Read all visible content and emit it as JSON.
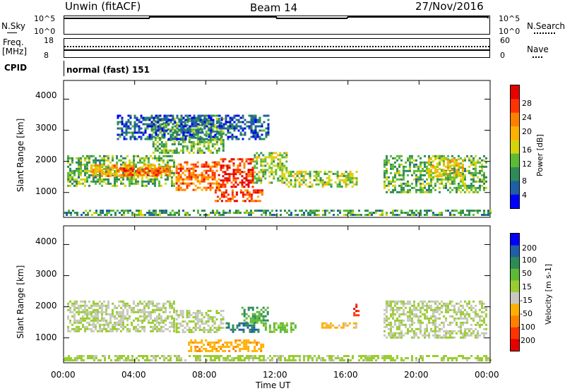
{
  "header": {
    "station": "Unwin (fitACF)",
    "beam": "Beam 14",
    "date": "27/Nov/2016"
  },
  "top_panels": {
    "nsky": {
      "label": "N.Sky",
      "y_top": "10^5",
      "y_bottom": "10^0"
    },
    "nsearch": {
      "label": "N.Search",
      "y_top": "10^5",
      "y_bottom": "10^0"
    },
    "freq": {
      "label_line1": "Freq.",
      "label_line2": "[MHz]",
      "y_top": "18",
      "y_bottom": "8"
    },
    "nave": {
      "label": "Nave",
      "y_top": "60",
      "y_bottom": "0"
    },
    "cpid": {
      "label": "CPID",
      "value": "normal (fast) 151"
    }
  },
  "power_colorbar": {
    "title": "Power [dB]",
    "ticks": [
      "28",
      "24",
      "20",
      "16",
      "12",
      "8",
      "4"
    ],
    "colors": [
      "#e60000",
      "#ff3300",
      "#ff8000",
      "#ffb000",
      "#d4d40a",
      "#5cba34",
      "#2e8b57",
      "#1f5fa6",
      "#0000ff"
    ]
  },
  "velocity_colorbar": {
    "title": "Velocity [m s-1]",
    "ticks": [
      "200",
      "100",
      "50",
      "15",
      "-15",
      "-50",
      "-100",
      "-200"
    ],
    "colors": [
      "#0000ff",
      "#1f5fa6",
      "#2e8b57",
      "#5cba34",
      "#9acd32",
      "#c8c8c0",
      "#ffb000",
      "#ff8000",
      "#ff3300",
      "#e60000"
    ]
  },
  "axes": {
    "ylabel": "Slant Range [km]",
    "yticks": [
      "4000",
      "3000",
      "2000",
      "1000"
    ],
    "xticks": [
      "00:00",
      "04:00",
      "08:00",
      "12:00",
      "16:00",
      "20:00",
      "00:00"
    ],
    "xlabel": "Time UT"
  },
  "chart_data": [
    {
      "type": "heatmap",
      "title": "",
      "ylabel": "Slant Range [km]",
      "xlabel": "",
      "xlim": [
        0,
        24
      ],
      "ylim": [
        200,
        4600
      ],
      "value_name": "Power [dB]",
      "clim": [
        0,
        32
      ],
      "regions": [
        {
          "t0": 0.2,
          "t1": 6.2,
          "r0": 1200,
          "r1": 2200,
          "value": 12
        },
        {
          "t0": 1.5,
          "t1": 6.0,
          "r0": 1500,
          "r1": 1900,
          "value": 20
        },
        {
          "t0": 3.0,
          "t1": 5.8,
          "r0": 1550,
          "r1": 1800,
          "value": 26
        },
        {
          "t0": 6.3,
          "t1": 8.8,
          "r0": 1100,
          "r1": 2000,
          "value": 24
        },
        {
          "t0": 8.8,
          "t1": 10.7,
          "r0": 1200,
          "r1": 2100,
          "value": 28
        },
        {
          "t0": 8.5,
          "t1": 11.2,
          "r0": 750,
          "r1": 1100,
          "value": 26
        },
        {
          "t0": 10.7,
          "t1": 12.5,
          "r0": 1300,
          "r1": 2300,
          "value": 14
        },
        {
          "t0": 12.5,
          "t1": 16.5,
          "r0": 1200,
          "r1": 1700,
          "value": 14
        },
        {
          "t0": 5.0,
          "t1": 9.0,
          "r0": 2300,
          "r1": 3400,
          "value": 12
        },
        {
          "t0": 3.0,
          "t1": 11.5,
          "r0": 2700,
          "r1": 3500,
          "value": 6
        },
        {
          "t0": 18.0,
          "t1": 23.8,
          "r0": 1000,
          "r1": 2200,
          "value": 12
        },
        {
          "t0": 20.5,
          "t1": 22.5,
          "r0": 1500,
          "r1": 2100,
          "value": 18
        },
        {
          "t0": 0.0,
          "t1": 24.0,
          "r0": 250,
          "r1": 450,
          "value": 10
        }
      ]
    },
    {
      "type": "heatmap",
      "title": "",
      "ylabel": "Slant Range [km]",
      "xlabel": "Time UT",
      "xlim": [
        0,
        24
      ],
      "ylim": [
        200,
        4600
      ],
      "value_name": "Velocity [m s-1]",
      "clim": [
        -250,
        250
      ],
      "regions": [
        {
          "t0": 0.2,
          "t1": 6.2,
          "r0": 1200,
          "r1": 2200,
          "value": 0
        },
        {
          "t0": 6.3,
          "t1": 9.0,
          "r0": 1200,
          "r1": 1900,
          "value": 0
        },
        {
          "t0": 9.0,
          "t1": 11.0,
          "r0": 1200,
          "r1": 1500,
          "value": 150
        },
        {
          "t0": 10.0,
          "t1": 11.5,
          "r0": 1500,
          "r1": 2000,
          "value": 100
        },
        {
          "t0": 7.0,
          "t1": 11.2,
          "r0": 600,
          "r1": 950,
          "value": -80
        },
        {
          "t0": 11.2,
          "t1": 13.0,
          "r0": 1200,
          "r1": 1500,
          "value": 60
        },
        {
          "t0": 14.5,
          "t1": 16.5,
          "r0": 1300,
          "r1": 1500,
          "value": -60
        },
        {
          "t0": 16.3,
          "t1": 16.6,
          "r0": 1700,
          "r1": 2100,
          "value": -200
        },
        {
          "t0": 18.0,
          "t1": 23.8,
          "r0": 1000,
          "r1": 2200,
          "value": 0
        },
        {
          "t0": 0.0,
          "t1": 24.0,
          "r0": 250,
          "r1": 450,
          "value": 20
        }
      ]
    }
  ]
}
